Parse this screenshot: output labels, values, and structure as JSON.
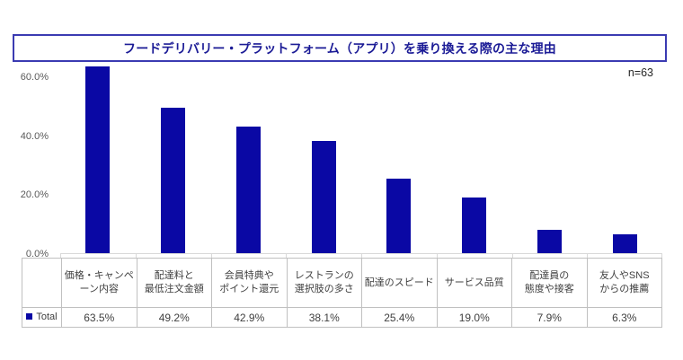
{
  "title": "フードデリバリー・プラットフォーム（アプリ）を乗り換える際の主な理由",
  "sample_size": "n=63",
  "colors": {
    "bar": "#0a08a4",
    "title_text": "#1b1b96",
    "title_border": "#3b3bb2",
    "axis_line": "#d9d9d9",
    "table_border": "#c0c0c0",
    "table_text": "#404040",
    "y_label_text": "#595959"
  },
  "chart_data": {
    "type": "bar",
    "title": "フードデリバリー・プラットフォーム（アプリ）を乗り換える際の主な理由",
    "xlabel": "",
    "ylabel": "",
    "categories": [
      "価格・キャンペ\nーン内容",
      "配達料と\n最低注文金額",
      "会員特典や\nポイント還元",
      "レストランの\n選択肢の多さ",
      "配達のスピード",
      "サービス品質",
      "配達員の\n態度や接客",
      "友人やSNS\nからの推薦"
    ],
    "series": [
      {
        "name": "Total",
        "values": [
          63.5,
          49.2,
          42.9,
          38.1,
          25.4,
          19.0,
          7.9,
          6.3
        ],
        "value_labels": [
          "63.5%",
          "49.2%",
          "42.9%",
          "38.1%",
          "25.4%",
          "19.0%",
          "7.9%",
          "6.3%"
        ]
      }
    ],
    "y_ticks": [
      "60.0%",
      "40.0%",
      "20.0%",
      "0.0%"
    ],
    "y_tick_values": [
      60,
      40,
      20,
      0
    ],
    "ylim": [
      0,
      60
    ],
    "grid": false,
    "legend_position": "bottom-left-table",
    "annotation": "n=63"
  }
}
